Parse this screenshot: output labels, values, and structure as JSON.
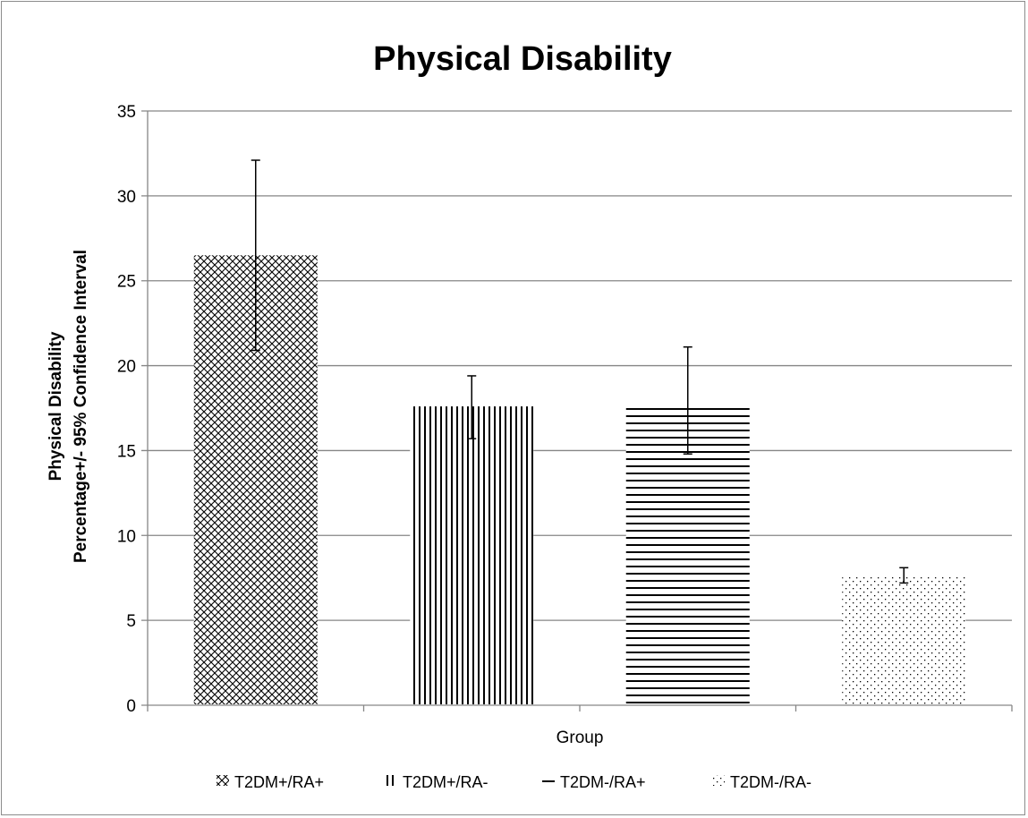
{
  "chart_data": {
    "type": "bar",
    "title": "Physical Disability",
    "xlabel": "Group",
    "ylabel_lines": [
      "Physical Disability",
      "Percentage+/- 95% Confidence Interval"
    ],
    "ylim": [
      0,
      35
    ],
    "yticks": [
      0,
      5,
      10,
      15,
      20,
      25,
      30,
      35
    ],
    "grid": true,
    "legend_position": "bottom",
    "series": [
      {
        "name": "T2DM+/RA+",
        "value": 26.5,
        "ci_low": 20.9,
        "ci_high": 32.1,
        "pattern": "crosshatch"
      },
      {
        "name": "T2DM+/RA-",
        "value": 17.6,
        "ci_low": 15.7,
        "ci_high": 19.4,
        "pattern": "vertical"
      },
      {
        "name": "T2DM-/RA+",
        "value": 17.7,
        "ci_low": 14.8,
        "ci_high": 21.1,
        "pattern": "horizontal"
      },
      {
        "name": "T2DM-/RA-",
        "value": 7.6,
        "ci_low": 7.2,
        "ci_high": 8.1,
        "pattern": "dots"
      }
    ]
  }
}
